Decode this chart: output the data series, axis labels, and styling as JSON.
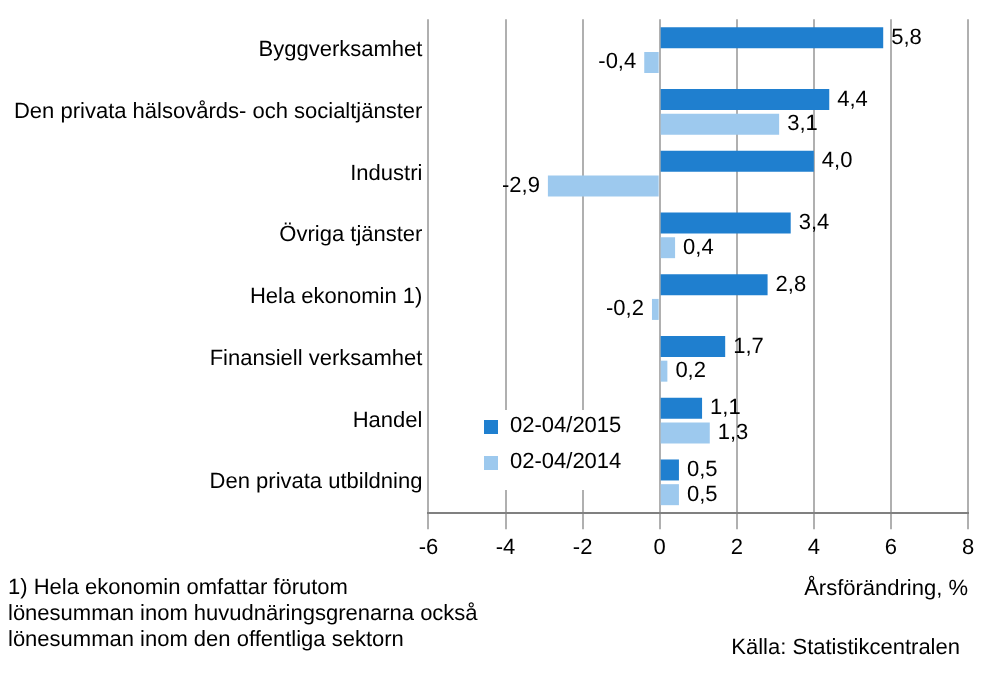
{
  "chart_data": {
    "type": "bar",
    "orientation": "horizontal",
    "categories": [
      "Byggverksamhet",
      "Den privata hälsovårds- och socialtjänster",
      "Industri",
      "Övriga tjänster",
      "Hela ekonomin 1)",
      "Finansiell verksamhet",
      "Handel",
      "Den privata utbildning"
    ],
    "series": [
      {
        "name": "02-04/2015",
        "color": "#1f7fcf",
        "values": [
          5.8,
          4.4,
          4.0,
          3.4,
          2.8,
          1.7,
          1.1,
          0.5
        ],
        "value_labels": [
          "5,8",
          "4,4",
          "4,0",
          "3,4",
          "2,8",
          "1,7",
          "1,1",
          "0,5"
        ]
      },
      {
        "name": "02-04/2014",
        "color": "#9dc9ee",
        "values": [
          -0.4,
          3.1,
          -2.9,
          0.4,
          -0.2,
          0.2,
          1.3,
          0.5
        ],
        "value_labels": [
          "-0,4",
          "3,1",
          "-2,9",
          "0,4",
          "-0,2",
          "0,2",
          "1,3",
          "0,5"
        ]
      }
    ],
    "xlim": [
      -6,
      8
    ],
    "xticks": [
      -6,
      -4,
      -2,
      0,
      2,
      4,
      6,
      8
    ],
    "xlabel": "Årsförändring, %",
    "grid": "x",
    "legend": "bottom left",
    "annotations": [
      "1) Hela ekonomin omfattar förutom lönesumman inom huvudnäringsgrenarna också lönesumman inom den offentliga sektorn",
      "Källa: Statistikcentralen"
    ]
  }
}
